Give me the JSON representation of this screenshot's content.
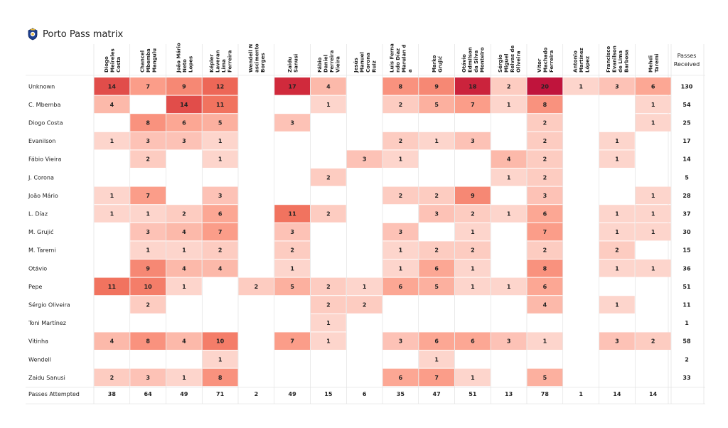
{
  "title": "Porto Pass matrix",
  "logo_icon": "fc-porto-crest-icon",
  "header_right": [
    "Passes",
    "Received"
  ],
  "footer_label": "Passes Attempted",
  "colors": {
    "low": "#fdd5cc",
    "high": "#c0143c",
    "background": "#ffffff",
    "grid": "#dddddd"
  },
  "chart_data": {
    "type": "heatmap",
    "columns": [
      [
        "Diogo",
        "Meireles",
        "Costa"
      ],
      [
        "Chancel",
        "Mbemba",
        "Mangulu"
      ],
      [
        "João Mário",
        "Neto",
        "Lopes"
      ],
      [
        "Képler",
        "Laveran",
        "Lima",
        "Ferreira"
      ],
      [
        "Wendell N",
        "ascimento",
        "Borges"
      ],
      [
        "Zaidu",
        "Sanusi"
      ],
      [
        "Fábio",
        "Daniel",
        "Ferreira",
        "Vieira"
      ],
      [
        "Jesús",
        "Manuel",
        "Corona",
        "Ruiz"
      ],
      [
        "Luis Ferna",
        "ndo Díaz",
        "Marulan d",
        "a"
      ],
      [
        "Marko",
        "Grujić"
      ],
      [
        "Otávio",
        "Edmilson",
        "da Silva",
        "Monteiro"
      ],
      [
        "Sérgio",
        "Miguel",
        "Relvas de",
        "Oliveira"
      ],
      [
        "Vítor",
        "Machado",
        "Ferreira"
      ],
      [
        "Antonio",
        "Martínez",
        "López"
      ],
      [
        "Francisco",
        "Evanilson",
        "de Lima",
        "Barbosa"
      ],
      [
        "Mehdi",
        "Taremi"
      ]
    ],
    "rows": [
      {
        "name": "Unknown",
        "values": [
          14,
          7,
          9,
          12,
          null,
          17,
          4,
          null,
          8,
          9,
          18,
          2,
          20,
          1,
          3,
          6
        ],
        "received": 130
      },
      {
        "name": "C. Mbemba",
        "values": [
          4,
          null,
          14,
          11,
          null,
          null,
          1,
          null,
          2,
          5,
          7,
          1,
          8,
          null,
          null,
          1
        ],
        "received": 54
      },
      {
        "name": "Diogo Costa",
        "values": [
          null,
          8,
          6,
          5,
          null,
          3,
          null,
          null,
          null,
          null,
          null,
          null,
          2,
          null,
          null,
          1
        ],
        "received": 25
      },
      {
        "name": "Evanilson",
        "values": [
          1,
          3,
          3,
          1,
          null,
          null,
          null,
          null,
          2,
          1,
          3,
          null,
          2,
          null,
          1,
          null
        ],
        "received": 17
      },
      {
        "name": "Fábio Vieira",
        "values": [
          null,
          2,
          null,
          1,
          null,
          null,
          null,
          3,
          1,
          null,
          null,
          4,
          2,
          null,
          1,
          null
        ],
        "received": 14
      },
      {
        "name": "J. Corona",
        "values": [
          null,
          null,
          null,
          null,
          null,
          null,
          2,
          null,
          null,
          null,
          null,
          1,
          2,
          null,
          null,
          null
        ],
        "received": 5
      },
      {
        "name": "João Mário",
        "values": [
          1,
          7,
          null,
          3,
          null,
          null,
          null,
          null,
          2,
          2,
          9,
          null,
          3,
          null,
          null,
          1
        ],
        "received": 28
      },
      {
        "name": "L. Díaz",
        "values": [
          1,
          1,
          2,
          6,
          null,
          11,
          2,
          null,
          null,
          3,
          2,
          1,
          6,
          null,
          1,
          1
        ],
        "received": 37
      },
      {
        "name": "M. Grujić",
        "values": [
          null,
          3,
          4,
          7,
          null,
          3,
          null,
          null,
          3,
          null,
          1,
          null,
          7,
          null,
          1,
          1
        ],
        "received": 30
      },
      {
        "name": "M. Taremi",
        "values": [
          null,
          1,
          1,
          2,
          null,
          2,
          null,
          null,
          1,
          2,
          2,
          null,
          2,
          null,
          2,
          null
        ],
        "received": 15
      },
      {
        "name": "Otávio",
        "values": [
          null,
          9,
          4,
          4,
          null,
          1,
          null,
          null,
          1,
          6,
          1,
          null,
          8,
          null,
          1,
          1
        ],
        "received": 36
      },
      {
        "name": "Pepe",
        "values": [
          11,
          10,
          1,
          null,
          2,
          5,
          2,
          1,
          6,
          5,
          1,
          1,
          6,
          null,
          null,
          null
        ],
        "received": 51
      },
      {
        "name": "Sérgio Oliveira",
        "values": [
          null,
          2,
          null,
          null,
          null,
          null,
          2,
          2,
          null,
          null,
          null,
          null,
          4,
          null,
          1,
          null
        ],
        "received": 11
      },
      {
        "name": "Toni Martínez",
        "values": [
          null,
          null,
          null,
          null,
          null,
          null,
          1,
          null,
          null,
          null,
          null,
          null,
          null,
          null,
          null,
          null
        ],
        "received": 1
      },
      {
        "name": "Vitinha",
        "values": [
          4,
          8,
          4,
          10,
          null,
          7,
          1,
          null,
          3,
          6,
          6,
          3,
          1,
          null,
          3,
          2
        ],
        "received": 58
      },
      {
        "name": "Wendell",
        "values": [
          null,
          null,
          null,
          1,
          null,
          null,
          null,
          null,
          null,
          1,
          null,
          null,
          null,
          null,
          null,
          null
        ],
        "received": 2
      },
      {
        "name": "Zaidu Sanusi",
        "values": [
          2,
          3,
          1,
          8,
          null,
          null,
          null,
          null,
          6,
          7,
          1,
          null,
          5,
          null,
          null,
          null
        ],
        "received": 33
      }
    ],
    "attempted": [
      38,
      64,
      49,
      71,
      2,
      49,
      15,
      6,
      35,
      47,
      51,
      13,
      78,
      1,
      14,
      14
    ],
    "value_range": [
      1,
      20
    ]
  }
}
